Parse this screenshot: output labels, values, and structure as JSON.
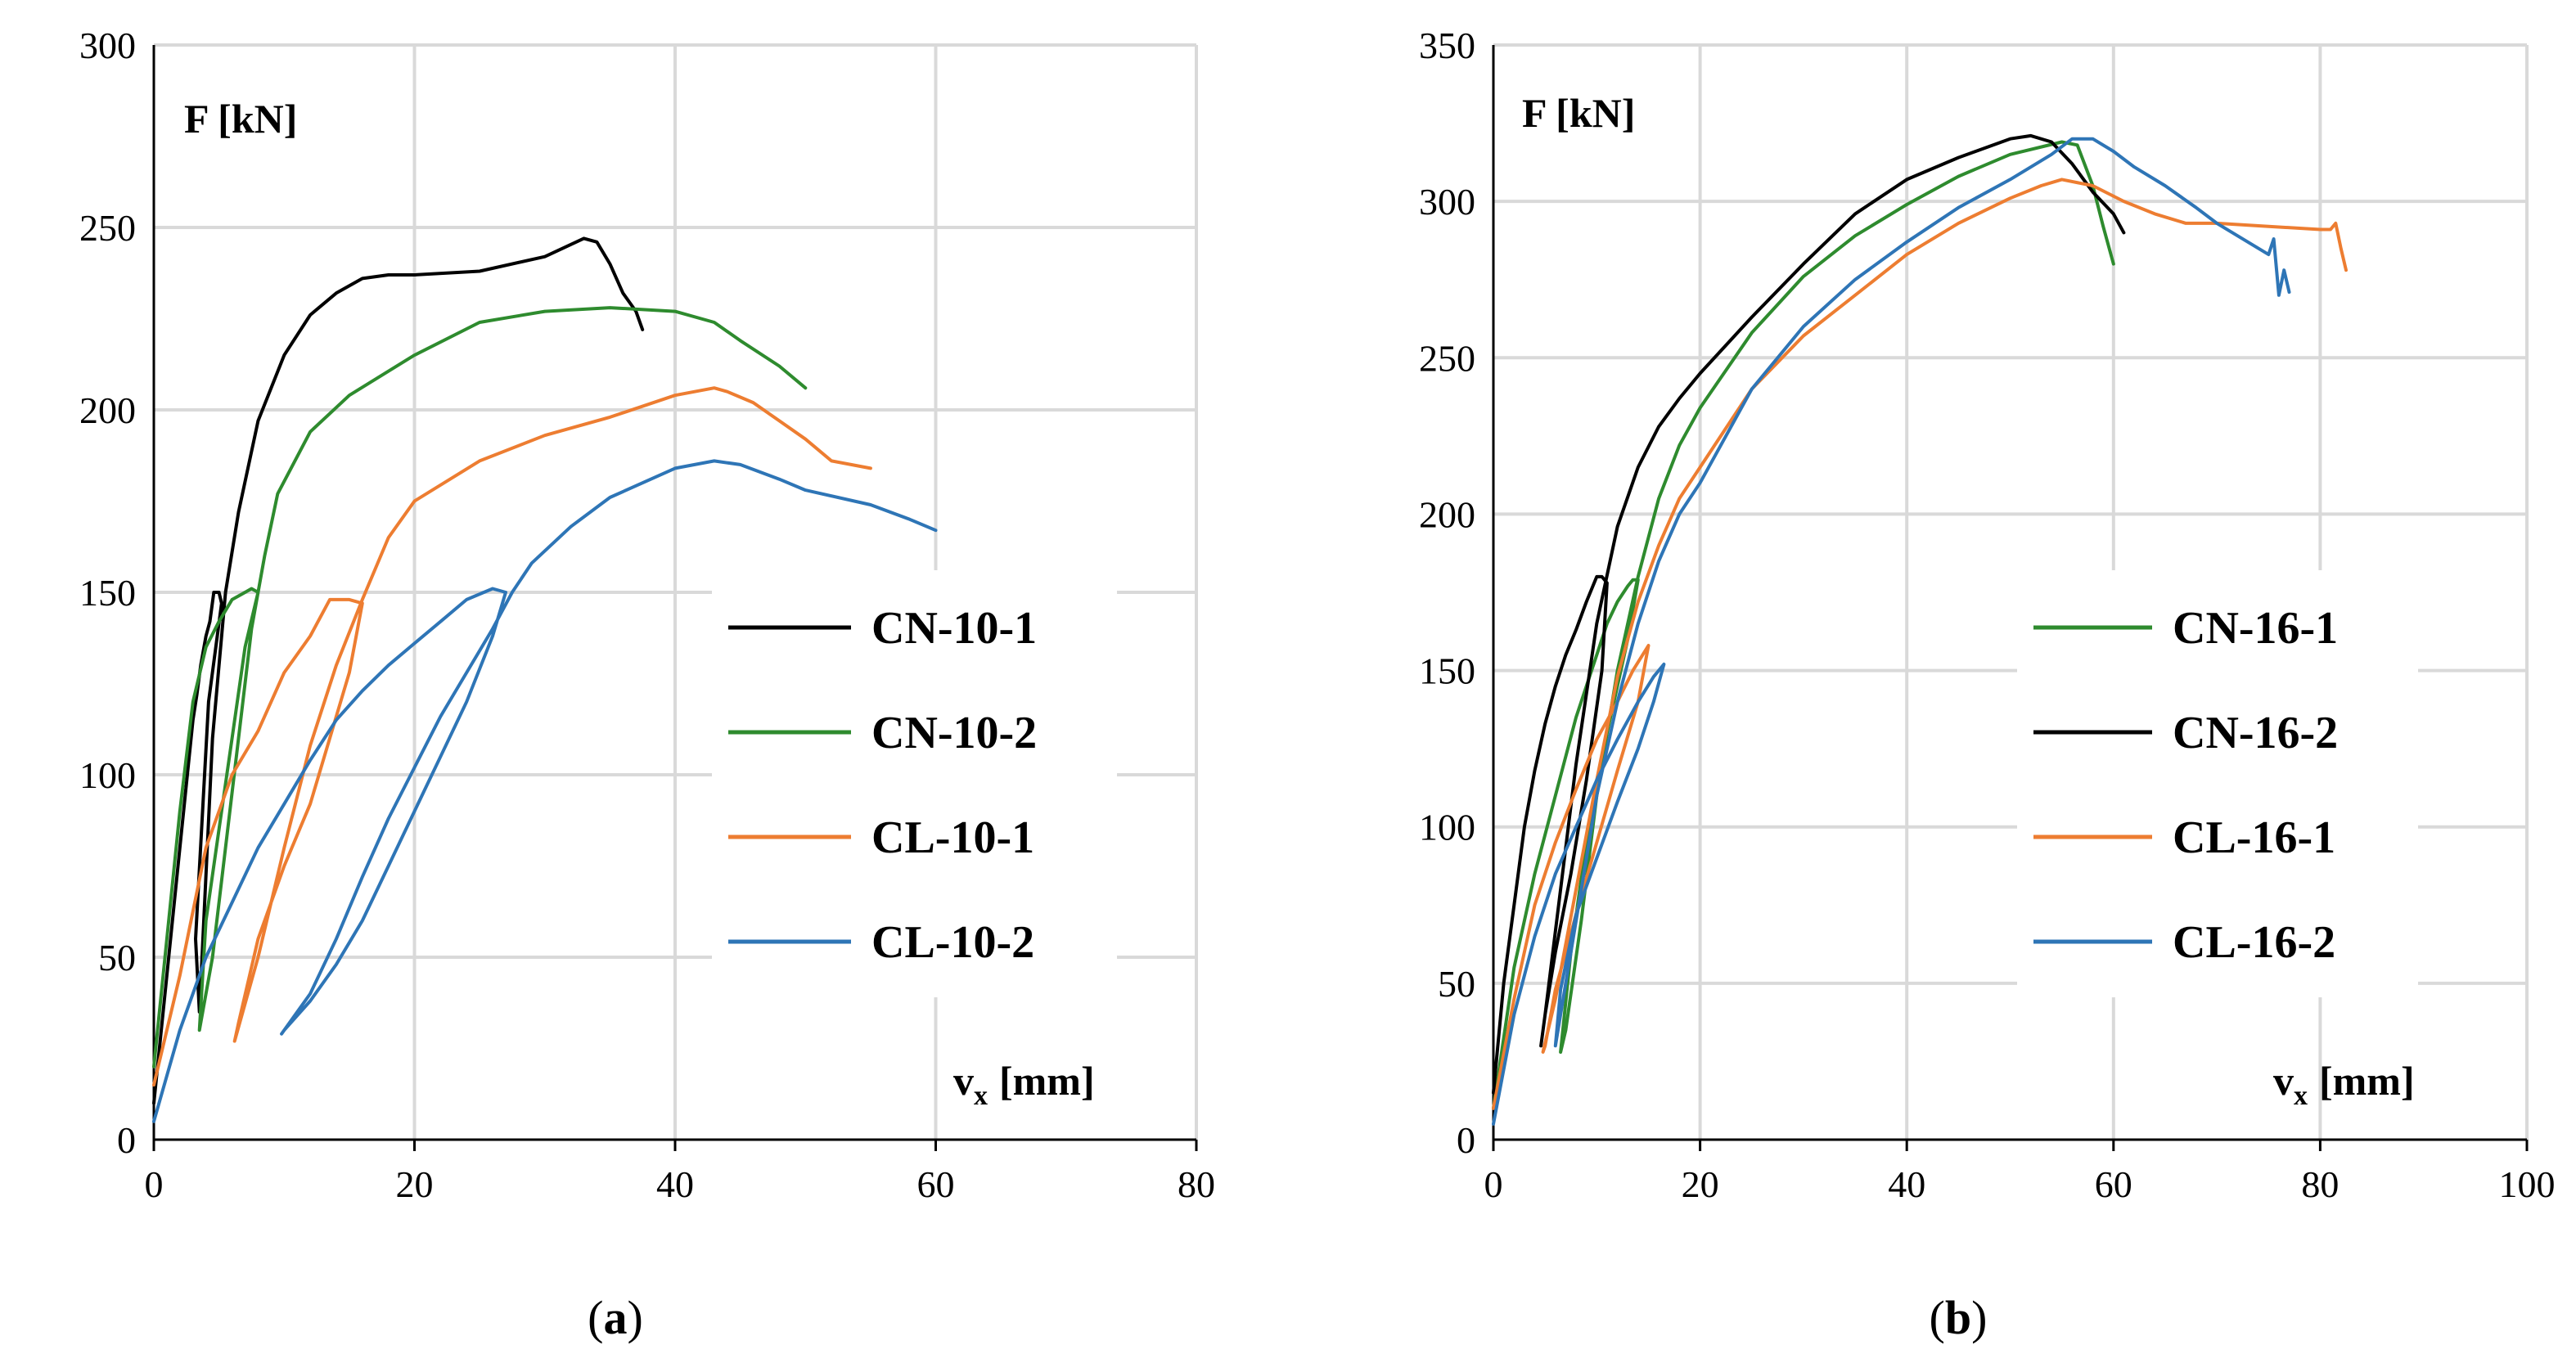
{
  "chart_data": [
    {
      "type": "line",
      "panel_label": "a",
      "ylabel": "F [kN]",
      "xlabel_main": "v",
      "xlabel_sub": "x",
      "xlabel_unit": "[mm]",
      "xlim": [
        0,
        80
      ],
      "ylim": [
        0,
        300
      ],
      "xticks": [
        0,
        20,
        40,
        60,
        80
      ],
      "yticks": [
        0,
        50,
        100,
        150,
        200,
        250,
        300
      ],
      "grid": true,
      "legend_position": "right",
      "series": [
        {
          "name": "CN-10-1",
          "color": "#000000",
          "x": [
            0,
            1,
            2,
            3,
            3.3,
            3.6,
            4,
            4.3,
            4.6,
            5,
            5.2,
            4.2,
            3.2,
            3.5,
            4.5,
            5.5,
            6.5,
            8,
            10,
            12,
            14,
            16,
            18,
            20,
            25,
            30,
            33,
            34,
            35,
            36,
            37,
            37.5
          ],
          "y": [
            10,
            45,
            80,
            115,
            122,
            130,
            138,
            142,
            150,
            150,
            147,
            120,
            55,
            35,
            110,
            150,
            172,
            197,
            215,
            226,
            232,
            236,
            237,
            237,
            238,
            242,
            247,
            246,
            240,
            232,
            227,
            222
          ]
        },
        {
          "name": "CN-10-2",
          "color": "#2e8b2e",
          "x": [
            0,
            1,
            2,
            3,
            4,
            5,
            6,
            7,
            7.5,
            8,
            7,
            6,
            5,
            4,
            3.5,
            4.5,
            5.5,
            6.5,
            7.5,
            8.5,
            9.5,
            12,
            15,
            20,
            25,
            30,
            35,
            40,
            43,
            45,
            48,
            50
          ],
          "y": [
            20,
            55,
            90,
            120,
            135,
            142,
            148,
            150,
            151,
            150,
            135,
            110,
            85,
            60,
            30,
            50,
            80,
            110,
            140,
            160,
            177,
            194,
            204,
            215,
            224,
            227,
            228,
            227,
            224,
            219,
            212,
            206
          ]
        },
        {
          "name": "CL-10-1",
          "color": "#ed7d31",
          "x": [
            0,
            2,
            4,
            6,
            8,
            10,
            12,
            13.5,
            15,
            16,
            15,
            13.5,
            12,
            10,
            8,
            6.5,
            6.2,
            8,
            10,
            12,
            14,
            16,
            18,
            20,
            25,
            30,
            35,
            40,
            43,
            44,
            46,
            48,
            50,
            52,
            55
          ],
          "y": [
            15,
            45,
            80,
            100,
            112,
            128,
            138,
            148,
            148,
            147,
            128,
            110,
            92,
            75,
            55,
            32,
            27,
            50,
            80,
            108,
            130,
            148,
            165,
            175,
            186,
            193,
            198,
            204,
            206,
            205,
            202,
            197,
            192,
            186,
            184
          ]
        },
        {
          "name": "CL-10-2",
          "color": "#2e75b6",
          "x": [
            0,
            2,
            4,
            6,
            8,
            10,
            12,
            14,
            16,
            18,
            20,
            22,
            24,
            26,
            27,
            26,
            24,
            22,
            20,
            18,
            16,
            14,
            12,
            10,
            9.8,
            12,
            14,
            16,
            18,
            20,
            22,
            24,
            26,
            27.5,
            29,
            32,
            35,
            40,
            43,
            45,
            48,
            50,
            55,
            58,
            60
          ],
          "y": [
            5,
            30,
            50,
            65,
            80,
            92,
            104,
            115,
            123,
            130,
            136,
            142,
            148,
            151,
            150,
            138,
            120,
            105,
            90,
            75,
            60,
            48,
            38,
            30,
            29,
            40,
            55,
            72,
            88,
            102,
            116,
            128,
            140,
            150,
            158,
            168,
            176,
            184,
            186,
            185,
            181,
            178,
            174,
            170,
            167
          ]
        }
      ]
    },
    {
      "type": "line",
      "panel_label": "b",
      "ylabel": "F [kN]",
      "xlabel_main": "v",
      "xlabel_sub": "x",
      "xlabel_unit": "[mm]",
      "xlim": [
        0,
        100
      ],
      "ylim": [
        0,
        350
      ],
      "xticks": [
        0,
        20,
        40,
        60,
        80,
        100
      ],
      "yticks": [
        0,
        50,
        100,
        150,
        200,
        250,
        300,
        350
      ],
      "grid": true,
      "legend_position": "right",
      "series": [
        {
          "name": "CN-16-1",
          "color": "#2e8b2e",
          "x": [
            0,
            2,
            4,
            6,
            8,
            10,
            11,
            12,
            13,
            13.5,
            14,
            13,
            11,
            9,
            7.5,
            6.5,
            7,
            8.5,
            10,
            12,
            14,
            16,
            18,
            20,
            25,
            30,
            35,
            40,
            45,
            50,
            55,
            56.5,
            58,
            59,
            60
          ],
          "y": [
            10,
            55,
            85,
            110,
            135,
            155,
            165,
            172,
            177,
            179,
            179,
            160,
            130,
            95,
            60,
            28,
            35,
            70,
            110,
            150,
            180,
            205,
            222,
            234,
            258,
            276,
            289,
            299,
            308,
            315,
            319,
            318,
            305,
            292,
            280
          ]
        },
        {
          "name": "CN-16-2",
          "color": "#000000",
          "x": [
            0,
            1,
            2,
            3,
            4,
            5,
            6,
            7,
            8,
            9,
            10,
            10.5,
            11,
            10.5,
            9,
            7.5,
            6,
            5,
            4.6,
            5,
            6.5,
            8,
            10,
            12,
            14,
            16,
            18,
            20,
            25,
            30,
            35,
            40,
            45,
            50,
            52,
            54,
            56,
            58,
            60,
            61
          ],
          "y": [
            15,
            50,
            75,
            100,
            118,
            133,
            145,
            155,
            163,
            172,
            180,
            180,
            178,
            150,
            115,
            85,
            60,
            40,
            30,
            40,
            80,
            120,
            165,
            196,
            215,
            228,
            237,
            245,
            263,
            280,
            296,
            307,
            314,
            320,
            321,
            319,
            312,
            303,
            296,
            290
          ]
        },
        {
          "name": "CL-16-1",
          "color": "#ed7d31",
          "x": [
            0,
            2,
            4,
            6,
            8,
            10,
            12,
            13.5,
            15,
            14,
            12,
            10,
            8,
            6,
            5,
            4.8,
            6,
            8,
            10,
            12,
            14,
            16,
            18,
            20,
            25,
            30,
            35,
            40,
            45,
            50,
            53,
            55,
            58,
            61,
            64,
            67,
            70,
            75,
            80,
            81,
            81.5,
            82,
            82.5
          ],
          "y": [
            10,
            45,
            75,
            95,
            112,
            128,
            140,
            150,
            158,
            140,
            118,
            95,
            72,
            48,
            30,
            28,
            45,
            80,
            115,
            148,
            172,
            190,
            205,
            215,
            240,
            257,
            270,
            283,
            293,
            301,
            305,
            307,
            305,
            300,
            296,
            293,
            293,
            292,
            291,
            291,
            293,
            285,
            278
          ]
        },
        {
          "name": "CL-16-2",
          "color": "#2e75b6",
          "x": [
            0,
            2,
            4,
            6,
            8,
            10,
            12,
            14,
            15.5,
            16.5,
            15.5,
            14,
            12,
            10,
            8,
            6.5,
            6,
            7,
            8.5,
            10,
            12,
            14,
            16,
            18,
            20,
            25,
            30,
            35,
            40,
            45,
            50,
            54,
            56,
            58,
            60,
            62,
            65,
            68,
            70,
            73,
            75,
            75.5,
            76,
            76.5,
            77
          ],
          "y": [
            5,
            40,
            65,
            85,
            100,
            115,
            128,
            140,
            148,
            152,
            140,
            125,
            108,
            90,
            72,
            48,
            30,
            50,
            80,
            110,
            140,
            165,
            185,
            200,
            210,
            240,
            260,
            275,
            287,
            298,
            307,
            315,
            320,
            320,
            316,
            311,
            305,
            298,
            293,
            287,
            283,
            288,
            270,
            278,
            271
          ]
        }
      ]
    }
  ]
}
